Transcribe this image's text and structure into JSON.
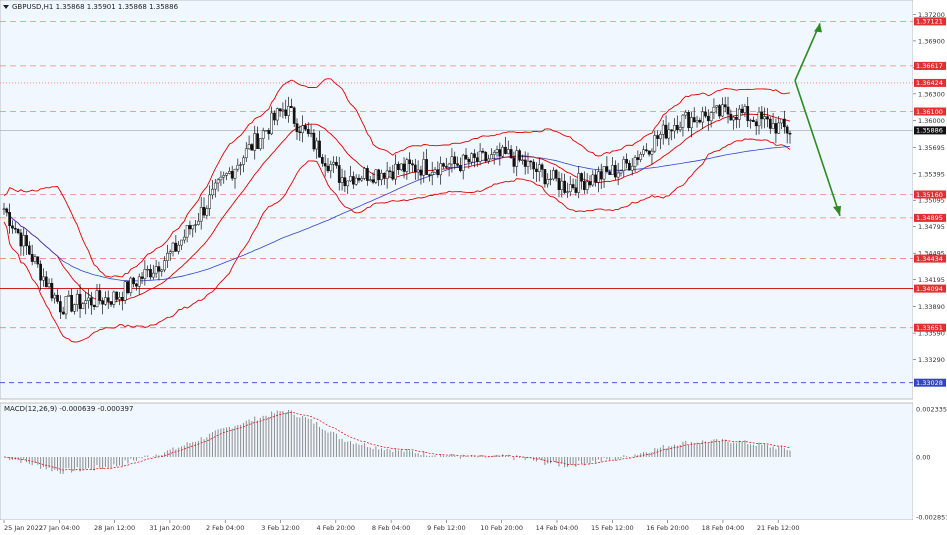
{
  "colors": {
    "background": "#f0f7ff",
    "candle": "#111111",
    "bollinger": "#e00000",
    "sma": "#3344cc",
    "level_line": "#f08080",
    "support_line": "#cc0000",
    "blue_level": "#3344cc",
    "arrow": "#2e8b22",
    "macd_hist": "#8c8c8c",
    "macd_signal": "#e00000",
    "price_tag": "#111111"
  },
  "header": {
    "symbol_title": "GBPUSD,H1  1.35868 1.35901 1.35868 1.35886",
    "dropdown_icon": "triangle-down-icon"
  },
  "price_axis": {
    "ticks": [
      "1.37200",
      "1.36900",
      "1.36600",
      "1.36300",
      "1.36000",
      "1.35695",
      "1.35395",
      "1.35095",
      "1.34795",
      "1.34495",
      "1.34195",
      "1.33890",
      "1.33590",
      "1.33290"
    ]
  },
  "levels": [
    {
      "label": "1.37121",
      "style": "dashed-red",
      "tag": "#e03030"
    },
    {
      "label": "1.36617",
      "style": "dashed-red",
      "tag": "#e03030"
    },
    {
      "label": "1.36424",
      "style": "dotted-red",
      "tag": "#e03030"
    },
    {
      "label": "1.36100",
      "style": "dashed-red",
      "tag": "#e03030"
    },
    {
      "label": "1.35886",
      "style": "solid-grey",
      "tag": "#111111"
    },
    {
      "label": "1.35160",
      "style": "dashed-red",
      "tag": "#e03030"
    },
    {
      "label": "1.34895",
      "style": "dashed-red",
      "tag": "#e03030"
    },
    {
      "label": "1.34434",
      "style": "dashed-red",
      "tag": "#e03030"
    },
    {
      "label": "1.34094",
      "style": "solid-red",
      "tag": "#e03030"
    },
    {
      "label": "1.33651",
      "style": "dashed-red",
      "tag": "#e03030"
    },
    {
      "label": "1.33028",
      "style": "dashed-blue",
      "tag": "#3344cc"
    }
  ],
  "macd": {
    "title": "MACD(12,26,9) -0.000639 -0.000397",
    "ticks": [
      "0.002335",
      "0.00",
      "-0.002857"
    ]
  },
  "time_axis": {
    "labels": [
      "25 Jan 2022",
      "27 Jan 04:00",
      "28 Jan 12:00",
      "31 Jan 20:00",
      "2 Feb 04:00",
      "3 Feb 12:00",
      "4 Feb 20:00",
      "8 Feb 04:00",
      "9 Feb 12:00",
      "10 Feb 20:00",
      "14 Feb 04:00",
      "15 Feb 12:00",
      "16 Feb 20:00",
      "18 Feb 04:00",
      "21 Feb 12:00"
    ]
  },
  "chart_data": {
    "type": "candlestick",
    "symbol": "GBPUSD",
    "timeframe": "H1",
    "ohlc_last": {
      "open": 1.35868,
      "high": 1.35901,
      "low": 1.35868,
      "close": 1.35886
    },
    "ylim": [
      1.329,
      1.3725
    ],
    "close_path": [
      [
        "25 Jan 2022",
        1.35
      ],
      [
        "27 Jan 04:00",
        1.339
      ],
      [
        "28 Jan 12:00",
        1.34
      ],
      [
        "31 Jan 20:00",
        1.345
      ],
      [
        "2 Feb 04:00",
        1.354
      ],
      [
        "3 Feb 12:00",
        1.3615
      ],
      [
        "4 Feb 20:00",
        1.3535
      ],
      [
        "8 Feb 04:00",
        1.3545
      ],
      [
        "9 Feb 12:00",
        1.355
      ],
      [
        "10 Feb 20:00",
        1.356
      ],
      [
        "14 Feb 04:00",
        1.3525
      ],
      [
        "15 Feb 12:00",
        1.3545
      ],
      [
        "16 Feb 20:00",
        1.36
      ],
      [
        "18 Feb 04:00",
        1.361
      ],
      [
        "21 Feb 12:00",
        1.3588
      ]
    ],
    "projection": {
      "up_target": 1.37121,
      "down_target": 1.34895
    }
  }
}
